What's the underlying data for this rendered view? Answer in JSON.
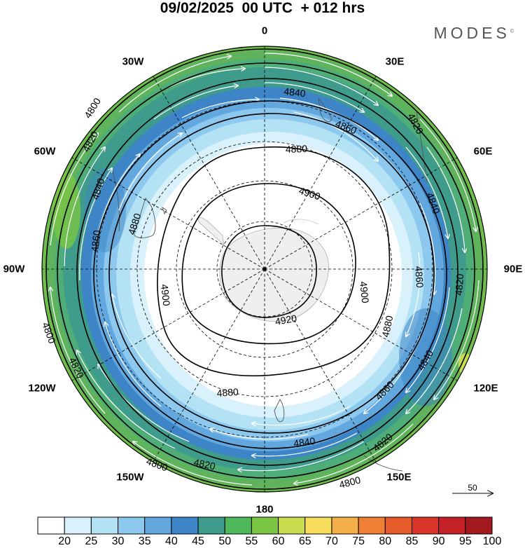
{
  "header": {
    "title": "09/02/2025  00 UTC  + 012 hrs",
    "brand": "MODES",
    "brand_mark": "©"
  },
  "map": {
    "projection": "south-polar-stereographic",
    "field": "500 hPa geopotential height (m) and wind speed",
    "longitude_labels": {
      "lon_0": "0",
      "lon_30e": "30E",
      "lon_60e": "60E",
      "lon_90e": "90E",
      "lon_120e": "120E",
      "lon_150e": "150E",
      "lon_180": "180",
      "lon_150w": "150W",
      "lon_120w": "120W",
      "lon_90w": "90W",
      "lon_60w": "60W",
      "lon_30w": "30W"
    },
    "contour_labels": [
      {
        "value": "4800"
      },
      {
        "value": "4800"
      },
      {
        "value": "4800"
      },
      {
        "value": "4800"
      },
      {
        "value": "4820"
      },
      {
        "value": "4820"
      },
      {
        "value": "4820"
      },
      {
        "value": "4820"
      },
      {
        "value": "4820"
      },
      {
        "value": "4820"
      },
      {
        "value": "4840"
      },
      {
        "value": "4840"
      },
      {
        "value": "4840"
      },
      {
        "value": "4840"
      },
      {
        "value": "4840"
      },
      {
        "value": "4860"
      },
      {
        "value": "4860"
      },
      {
        "value": "4860"
      },
      {
        "value": "4860"
      },
      {
        "value": "4880"
      },
      {
        "value": "4880"
      },
      {
        "value": "4880"
      },
      {
        "value": "4880"
      },
      {
        "value": "4900"
      },
      {
        "value": "4900"
      },
      {
        "value": "4900"
      },
      {
        "value": "4920"
      }
    ],
    "reference_vector": {
      "label": "50"
    }
  },
  "colorbar": {
    "colors": [
      "#ffffff",
      "#d9f1fb",
      "#b3e2f5",
      "#8dc8ee",
      "#62a8de",
      "#3d85c6",
      "#3f9c8c",
      "#4fb85a",
      "#7ac543",
      "#c8dc4e",
      "#f8dd5d",
      "#f4ae4a",
      "#ef7f34",
      "#e65b2a",
      "#d8352a",
      "#c32126",
      "#a2191f"
    ],
    "tick_labels": [
      "20",
      "25",
      "30",
      "35",
      "40",
      "45",
      "50",
      "55",
      "60",
      "65",
      "70",
      "75",
      "80",
      "85",
      "90",
      "95",
      "100"
    ]
  }
}
